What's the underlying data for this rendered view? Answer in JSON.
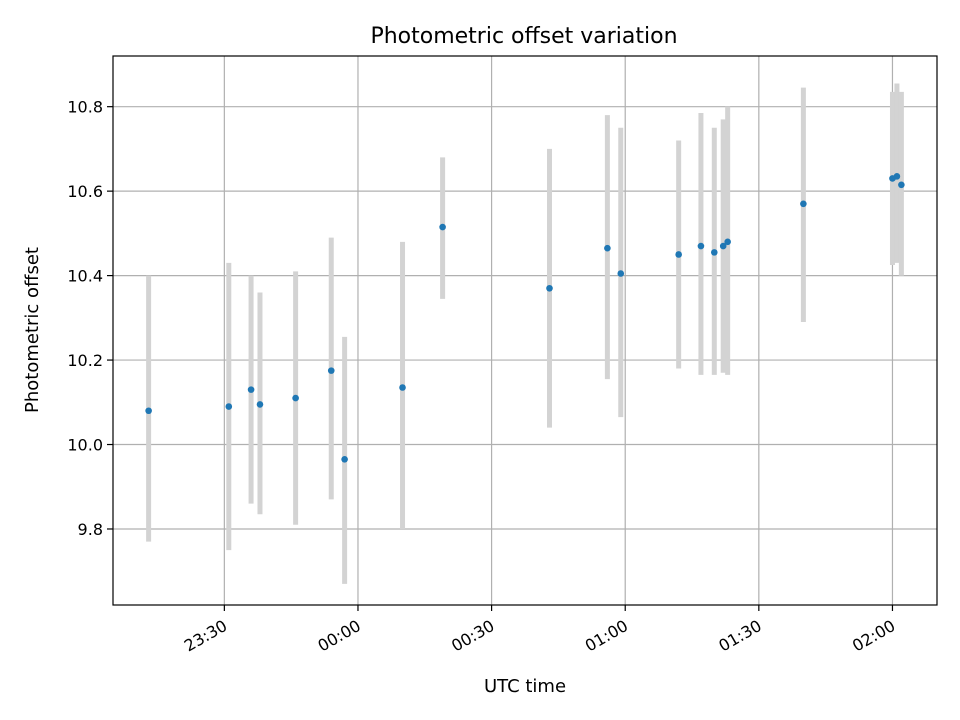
{
  "chart_data": {
    "type": "scatter",
    "title": "Photometric offset variation",
    "xlabel": "UTC time",
    "ylabel": "Photometric offset",
    "x_unit": "UTC clock time (HH:MM), sequence crosses midnight",
    "xlim": [
      "23:05",
      "02:10"
    ],
    "ylim": [
      9.62,
      10.92
    ],
    "x_ticks": [
      "23:30",
      "00:00",
      "00:30",
      "01:00",
      "01:30",
      "02:00"
    ],
    "y_ticks": [
      9.8,
      10.0,
      10.2,
      10.4,
      10.6,
      10.8
    ],
    "grid": true,
    "legend": "none",
    "colors": {
      "marker": "#1f77b4",
      "errorbar": "#d3d3d3"
    },
    "points": [
      {
        "x": "23:13",
        "y": 10.08,
        "y_low": 9.77,
        "y_high": 10.4
      },
      {
        "x": "23:31",
        "y": 10.09,
        "y_low": 9.75,
        "y_high": 10.43
      },
      {
        "x": "23:36",
        "y": 10.13,
        "y_low": 9.86,
        "y_high": 10.4
      },
      {
        "x": "23:38",
        "y": 10.095,
        "y_low": 9.835,
        "y_high": 10.36
      },
      {
        "x": "23:46",
        "y": 10.11,
        "y_low": 9.81,
        "y_high": 10.41
      },
      {
        "x": "23:54",
        "y": 10.175,
        "y_low": 9.87,
        "y_high": 10.49
      },
      {
        "x": "23:57",
        "y": 9.965,
        "y_low": 9.67,
        "y_high": 10.255
      },
      {
        "x": "00:10",
        "y": 10.135,
        "y_low": 9.8,
        "y_high": 10.48
      },
      {
        "x": "00:19",
        "y": 10.515,
        "y_low": 10.345,
        "y_high": 10.68
      },
      {
        "x": "00:43",
        "y": 10.37,
        "y_low": 10.04,
        "y_high": 10.7
      },
      {
        "x": "00:56",
        "y": 10.465,
        "y_low": 10.155,
        "y_high": 10.78
      },
      {
        "x": "00:59",
        "y": 10.405,
        "y_low": 10.065,
        "y_high": 10.75
      },
      {
        "x": "01:12",
        "y": 10.45,
        "y_low": 10.18,
        "y_high": 10.72
      },
      {
        "x": "01:17",
        "y": 10.47,
        "y_low": 10.165,
        "y_high": 10.785
      },
      {
        "x": "01:20",
        "y": 10.455,
        "y_low": 10.165,
        "y_high": 10.75
      },
      {
        "x": "01:22",
        "y": 10.47,
        "y_low": 10.17,
        "y_high": 10.77
      },
      {
        "x": "01:23",
        "y": 10.48,
        "y_low": 10.165,
        "y_high": 10.8
      },
      {
        "x": "01:40",
        "y": 10.57,
        "y_low": 10.29,
        "y_high": 10.845
      },
      {
        "x": "02:00",
        "y": 10.63,
        "y_low": 10.425,
        "y_high": 10.835
      },
      {
        "x": "02:01",
        "y": 10.635,
        "y_low": 10.43,
        "y_high": 10.855
      },
      {
        "x": "02:02",
        "y": 10.615,
        "y_low": 10.4,
        "y_high": 10.835
      }
    ]
  }
}
